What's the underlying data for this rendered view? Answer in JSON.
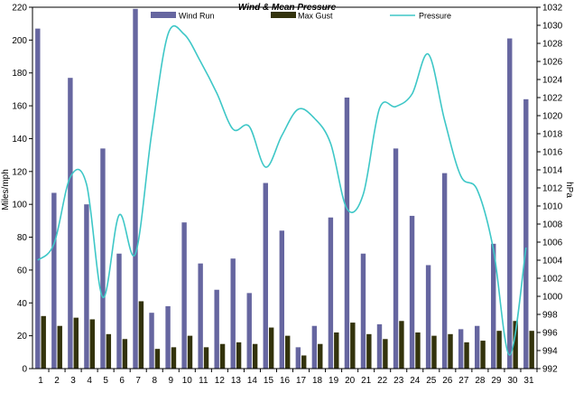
{
  "chart_data": {
    "type": "bar",
    "title": "Wind & Mean Pressure",
    "ylabel_left": "Miles/mph",
    "ylabel_right": "hPa",
    "y_left_range": [
      0,
      220
    ],
    "y_left_ticks": [
      0,
      20,
      40,
      60,
      80,
      100,
      120,
      140,
      160,
      180,
      200,
      220
    ],
    "y_right_range": [
      992,
      1032
    ],
    "y_right_ticks": [
      992,
      994,
      996,
      998,
      1000,
      1002,
      1004,
      1006,
      1008,
      1010,
      1012,
      1014,
      1016,
      1018,
      1020,
      1022,
      1024,
      1026,
      1028,
      1030,
      1032
    ],
    "grid": false,
    "legend_position": "top",
    "categories": [
      "1",
      "2",
      "3",
      "4",
      "5",
      "6",
      "7",
      "8",
      "9",
      "10",
      "11",
      "12",
      "13",
      "14",
      "15",
      "16",
      "17",
      "18",
      "19",
      "20",
      "21",
      "22",
      "23",
      "24",
      "25",
      "26",
      "27",
      "28",
      "29",
      "30",
      "31"
    ],
    "series": [
      {
        "name": "Wind Run",
        "kind": "bar",
        "axis": "left",
        "color": "#6666a0",
        "values": [
          207,
          107,
          177,
          100,
          134,
          70,
          219,
          34,
          38,
          89,
          64,
          48,
          67,
          46,
          113,
          84,
          13,
          26,
          92,
          165,
          70,
          27,
          134,
          93,
          63,
          119,
          24,
          26,
          76,
          201,
          164
        ]
      },
      {
        "name": "Max Gust",
        "kind": "bar",
        "axis": "left",
        "color": "#33330c",
        "values": [
          32,
          26,
          31,
          30,
          21,
          18,
          41,
          12,
          13,
          20,
          13,
          15,
          16,
          15,
          25,
          20,
          8,
          15,
          22,
          28,
          21,
          18,
          29,
          22,
          20,
          21,
          16,
          17,
          23,
          29,
          23
        ]
      },
      {
        "name": "Pressure",
        "kind": "line",
        "axis": "right",
        "color": "#3ec7c7",
        "values": [
          1004,
          1005.8,
          1013.2,
          1012.4,
          999.9,
          1009,
          1004.7,
          1018,
          1029,
          1029,
          1026,
          1022.5,
          1018.5,
          1018.8,
          1014.3,
          1017.8,
          1020.7,
          1019.7,
          1016.9,
          1009.7,
          1011.3,
          1020.8,
          1021,
          1022.4,
          1026.8,
          1019.5,
          1013.3,
          1011.8,
          1005.2,
          993.5,
          1005.4
        ]
      }
    ]
  }
}
